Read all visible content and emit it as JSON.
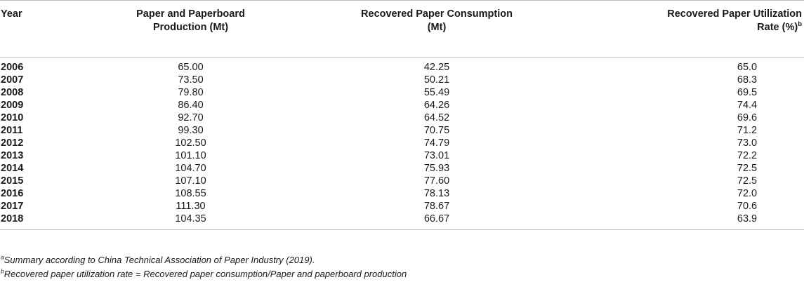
{
  "table": {
    "headers": {
      "year": "Year",
      "production_line1": "Paper and Paperboard",
      "production_line2": "Production (Mt)",
      "consumption_line1": "Recovered Paper Consumption",
      "consumption_line2": "(Mt)",
      "rate_line1": "Recovered Paper Utilization",
      "rate_line2": "Rate (%)",
      "rate_footnote_mark": "b"
    },
    "rows": [
      {
        "year": "2006",
        "production": "65.00",
        "consumption": "42.25",
        "rate": "65.0"
      },
      {
        "year": "2007",
        "production": "73.50",
        "consumption": "50.21",
        "rate": "68.3"
      },
      {
        "year": "2008",
        "production": "79.80",
        "consumption": "55.49",
        "rate": "69.5"
      },
      {
        "year": "2009",
        "production": "86.40",
        "consumption": "64.26",
        "rate": "74.4"
      },
      {
        "year": "2010",
        "production": "92.70",
        "consumption": "64.52",
        "rate": "69.6"
      },
      {
        "year": "2011",
        "production": "99.30",
        "consumption": "70.75",
        "rate": "71.2"
      },
      {
        "year": "2012",
        "production": "102.50",
        "consumption": "74.79",
        "rate": "73.0"
      },
      {
        "year": "2013",
        "production": "101.10",
        "consumption": "73.01",
        "rate": "72.2"
      },
      {
        "year": "2014",
        "production": "104.70",
        "consumption": "75.93",
        "rate": "72.5"
      },
      {
        "year": "2015",
        "production": "107.10",
        "consumption": "77.60",
        "rate": "72.5"
      },
      {
        "year": "2016",
        "production": "108.55",
        "consumption": "78.13",
        "rate": "72.0"
      },
      {
        "year": "2017",
        "production": "111.30",
        "consumption": "78.67",
        "rate": "70.6"
      },
      {
        "year": "2018",
        "production": "104.35",
        "consumption": "66.67",
        "rate": "63.9"
      }
    ]
  },
  "footnotes": [
    {
      "mark": "a",
      "text": "Summary according to China Technical Association of Paper Industry (2019)."
    },
    {
      "mark": "b",
      "text": "Recovered paper utilization rate = Recovered paper consumption/Paper and paperboard production"
    }
  ]
}
